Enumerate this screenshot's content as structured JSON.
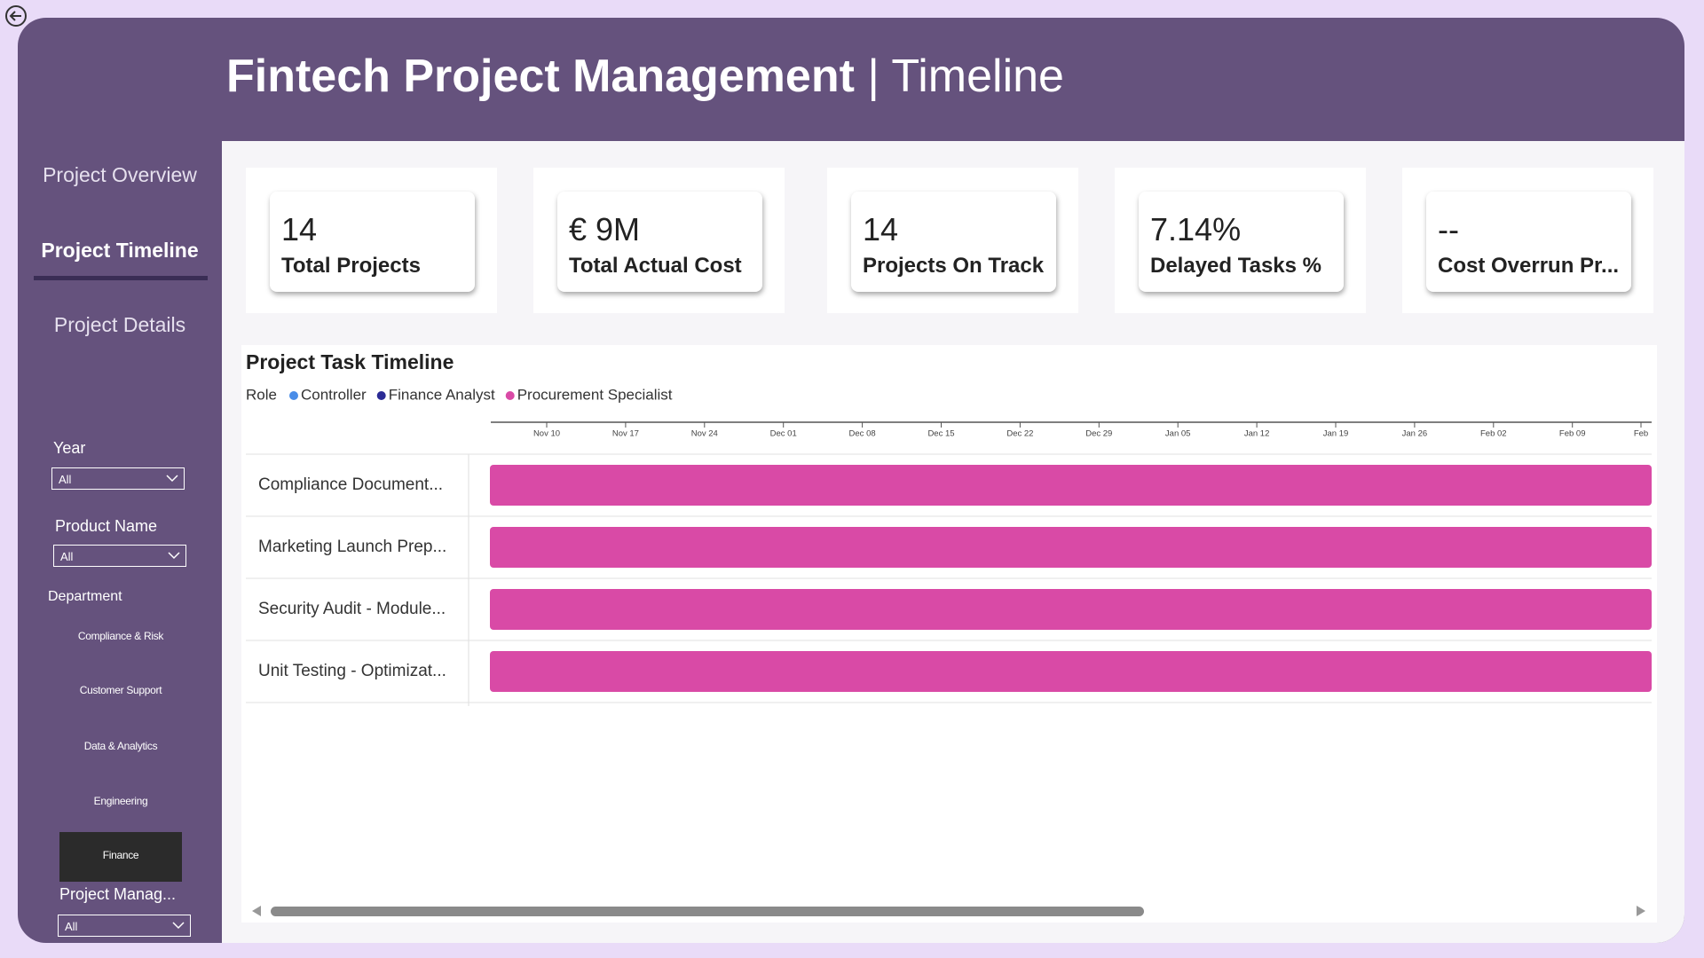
{
  "header": {
    "title": "Fintech Project Management",
    "separator": "|",
    "subtitle": "Timeline"
  },
  "nav": [
    "Project Overview",
    "Project Timeline",
    "Project Details"
  ],
  "filters": {
    "year": {
      "label": "Year",
      "value": "All"
    },
    "product": {
      "label": "Product Name",
      "value": "All"
    },
    "department": {
      "label": "Department",
      "items": [
        "Compliance & Risk",
        "Customer Support",
        "Data & Analytics",
        "Engineering",
        "Finance"
      ]
    },
    "manager": {
      "label": "Project Manag...",
      "value": "All"
    }
  },
  "kpis": [
    {
      "value": "14",
      "label": "Total Projects"
    },
    {
      "value": "€ 9M",
      "label": "Total Actual Cost"
    },
    {
      "value": "14",
      "label": "Projects On Track"
    },
    {
      "value": "7.14%",
      "label": "Delayed Tasks %"
    },
    {
      "value": "--",
      "label": "Cost Overrun Pr..."
    }
  ],
  "timeline": {
    "title": "Project Task Timeline",
    "legend_title": "Role",
    "legend": [
      {
        "name": "Controller",
        "color": "#4a8de8"
      },
      {
        "name": "Finance Analyst",
        "color": "#2b2b95"
      },
      {
        "name": "Procurement Specialist",
        "color": "#d94aa6"
      }
    ],
    "bar_color": "#d94aa6",
    "ticks": [
      "Nov 10",
      "Nov 17",
      "Nov 24",
      "Dec 01",
      "Dec 08",
      "Dec 15",
      "Dec 22",
      "Dec 29",
      "Jan 05",
      "Jan 12",
      "Jan 19",
      "Jan 26",
      "Feb 02",
      "Feb 09",
      "Feb"
    ],
    "tasks": [
      "Compliance Document...",
      "Marketing Launch Prep...",
      "Security Audit - Module...",
      "Unit Testing - Optimizat..."
    ]
  }
}
